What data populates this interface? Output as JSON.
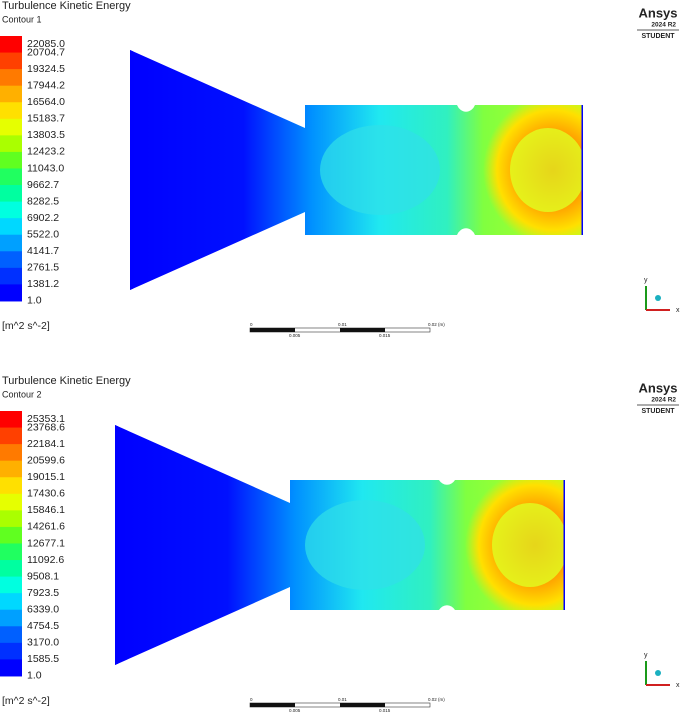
{
  "panels": [
    {
      "title": "Turbulence Kinetic Energy",
      "contour": "Contour 1",
      "legend": [
        "22085.0",
        "20704.7",
        "19324.5",
        "17944.2",
        "16564.0",
        "15183.7",
        "13803.5",
        "12423.2",
        "11043.0",
        "9662.7",
        "8282.5",
        "6902.2",
        "5522.0",
        "4141.7",
        "2761.5",
        "1381.2",
        "1.0"
      ],
      "unit": "[m^2 s^-2]",
      "brand": "Ansys",
      "version": "2024 R2",
      "edition": "STUDENT",
      "scale": {
        "top": [
          "0",
          "0.01",
          "0.02 (m)"
        ],
        "bottom": [
          "0.005",
          "0.015"
        ]
      },
      "axes": {
        "y": "y",
        "x": "x"
      }
    },
    {
      "title": "Turbulence Kinetic Energy",
      "contour": "Contour 2",
      "legend": [
        "25353.1",
        "23768.6",
        "22184.1",
        "20599.6",
        "19015.1",
        "17430.6",
        "15846.1",
        "14261.6",
        "12677.1",
        "11092.6",
        "9508.1",
        "7923.5",
        "6339.0",
        "4754.5",
        "3170.0",
        "1585.5",
        "1.0"
      ],
      "unit": "[m^2 s^-2]",
      "brand": "Ansys",
      "version": "2024 R2",
      "edition": "STUDENT",
      "scale": {
        "top": [
          "0",
          "0.01",
          "0.02 (m)"
        ],
        "bottom": [
          "0.005",
          "0.015"
        ]
      },
      "axes": {
        "y": "y",
        "x": "x"
      }
    }
  ]
}
